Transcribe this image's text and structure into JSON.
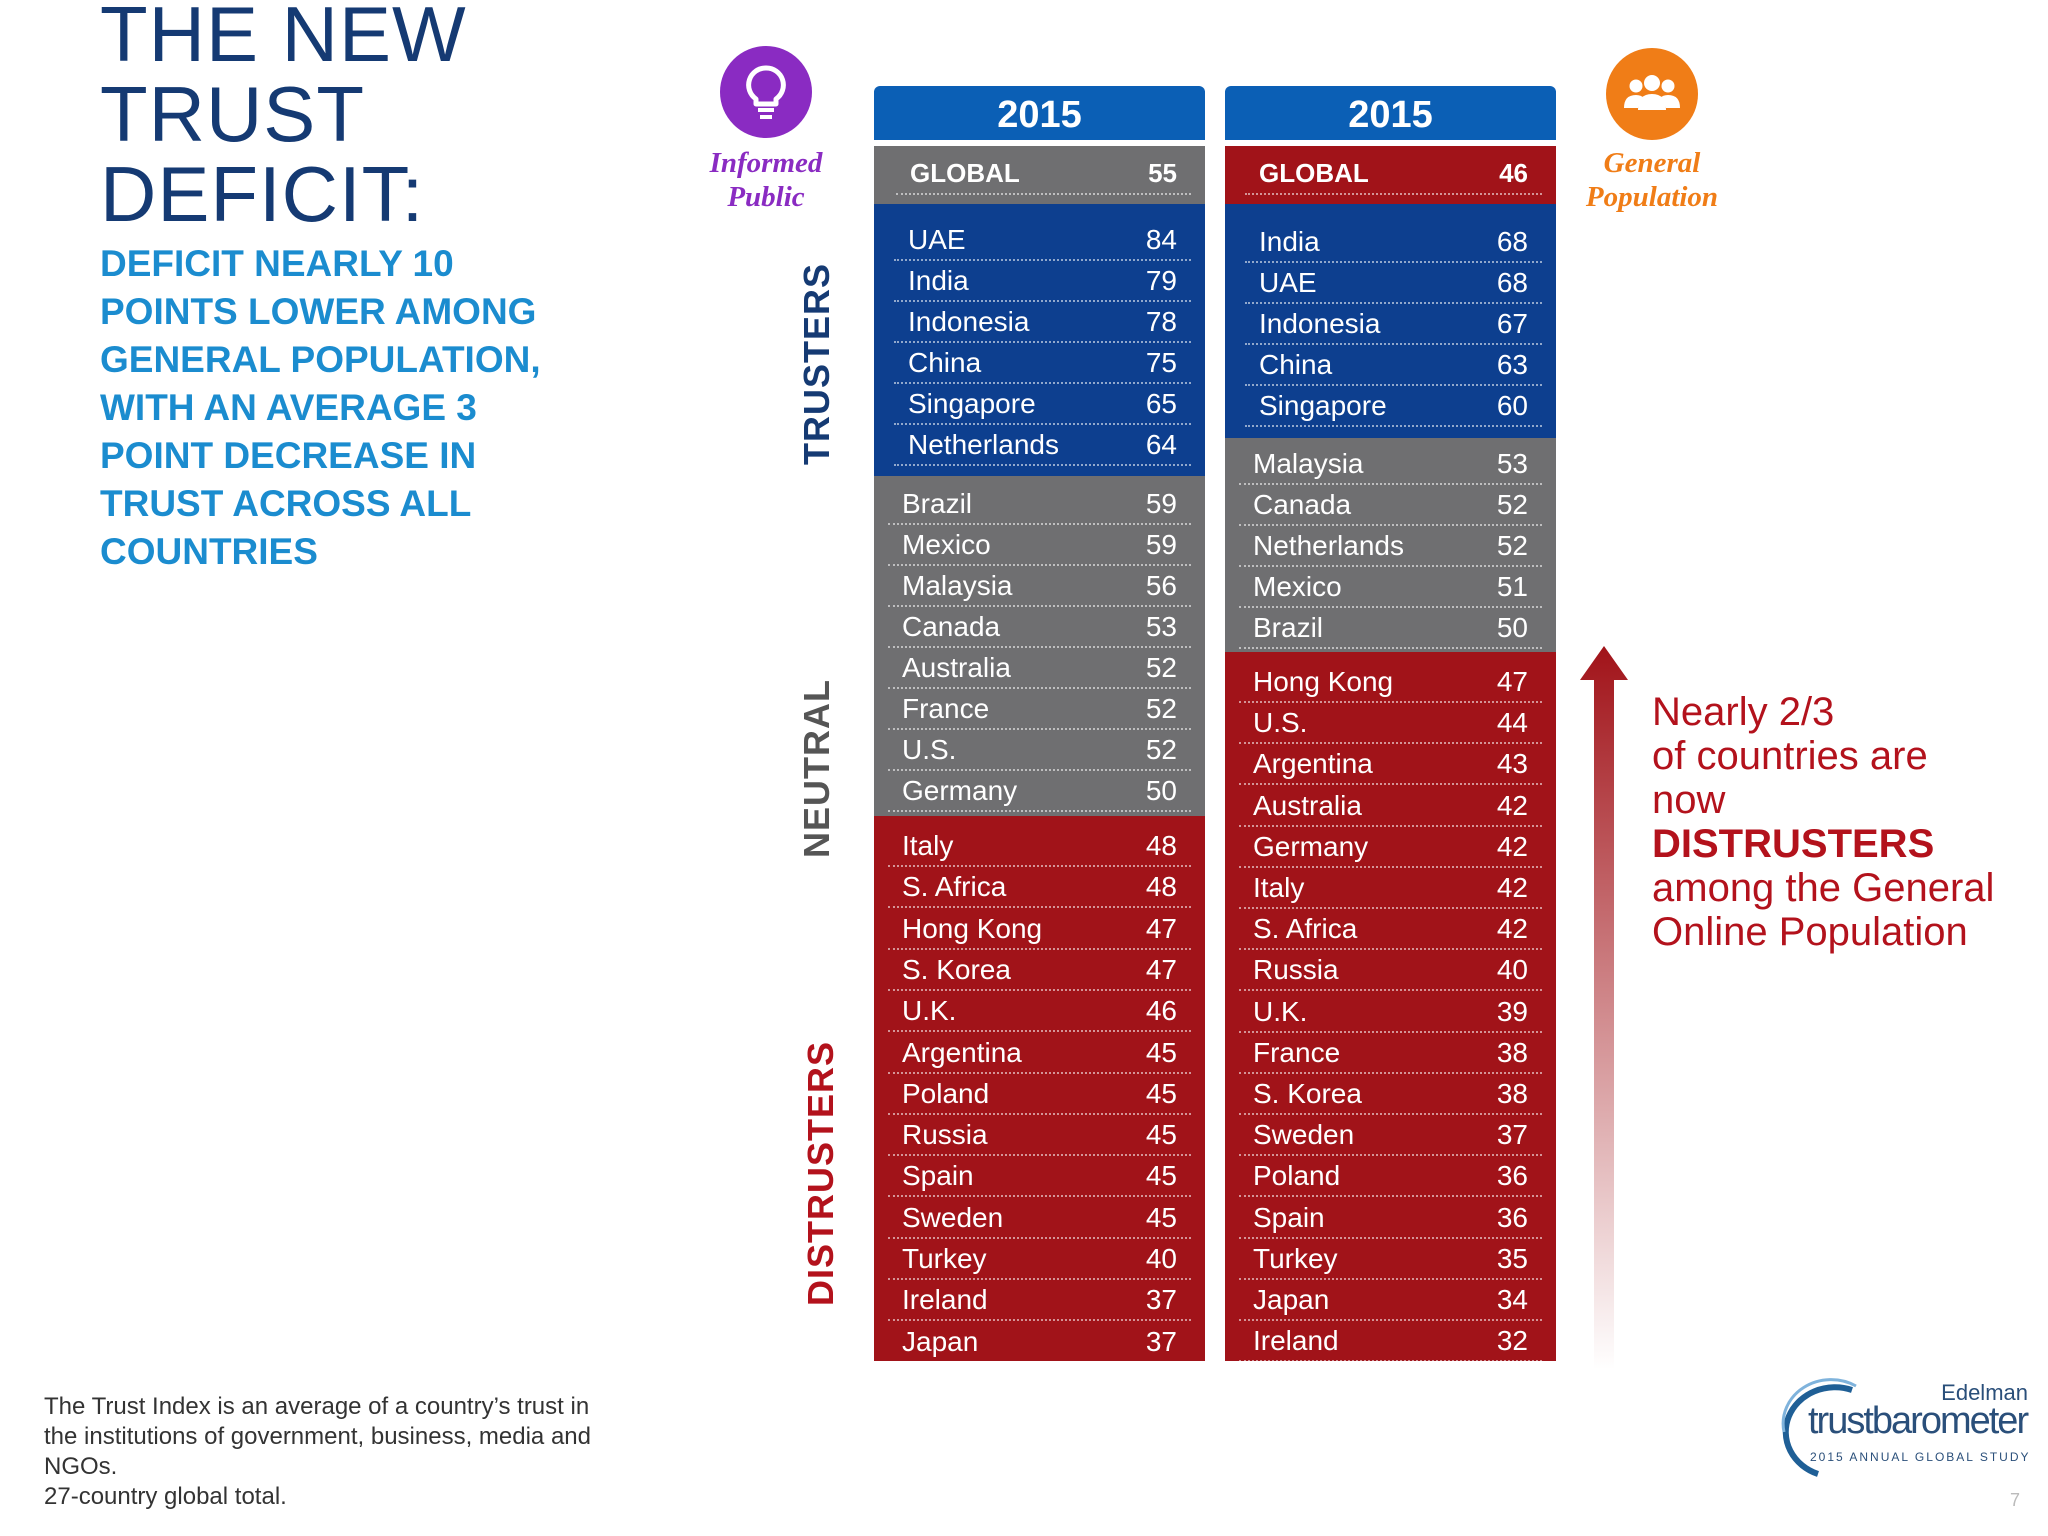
{
  "title": [
    "THE NEW",
    "TRUST",
    "DEFICIT:"
  ],
  "subtitle": [
    "DEFICIT NEARLY 10",
    "POINTS LOWER AMONG",
    "GENERAL POPULATION,",
    "WITH AN AVERAGE 3",
    "POINT DECREASE IN",
    "TRUST ACROSS ALL",
    "COUNTRIES"
  ],
  "side_labels": {
    "trusters": "TRUSTERS",
    "neutral": "NEUTRAL",
    "distrusters": "DISTRUSTERS"
  },
  "informed_public": {
    "label_line1": "Informed",
    "label_line2": "Public",
    "icon": "lightbulb-icon",
    "color": "#8a2bc2"
  },
  "general_population": {
    "label_line1": "General",
    "label_line2": "Population",
    "icon": "people-group-icon",
    "color": "#f07d17"
  },
  "colors": {
    "blue": "#0d3f8f",
    "gray": "#6f6f71",
    "red": "#a11319",
    "header_blue": "#0b5fb5"
  },
  "columns": [
    {
      "year": "2015",
      "global": {
        "name": "GLOBAL",
        "value": "55"
      },
      "trusters": [
        {
          "name": "UAE",
          "value": "84"
        },
        {
          "name": "India",
          "value": "79"
        },
        {
          "name": "Indonesia",
          "value": "78"
        },
        {
          "name": "China",
          "value": "75"
        },
        {
          "name": "Singapore",
          "value": "65"
        },
        {
          "name": "Netherlands",
          "value": "64"
        }
      ],
      "neutral": [
        {
          "name": "Brazil",
          "value": "59"
        },
        {
          "name": "Mexico",
          "value": "59"
        },
        {
          "name": "Malaysia",
          "value": "56"
        },
        {
          "name": "Canada",
          "value": "53"
        },
        {
          "name": "Australia",
          "value": "52"
        },
        {
          "name": "France",
          "value": "52"
        },
        {
          "name": "U.S.",
          "value": "52"
        },
        {
          "name": "Germany",
          "value": "50"
        }
      ],
      "distrusters": [
        {
          "name": "Italy",
          "value": "48"
        },
        {
          "name": "S. Africa",
          "value": "48"
        },
        {
          "name": "Hong Kong",
          "value": "47"
        },
        {
          "name": "S. Korea",
          "value": "47"
        },
        {
          "name": "U.K.",
          "value": "46"
        },
        {
          "name": "Argentina",
          "value": "45"
        },
        {
          "name": "Poland",
          "value": "45"
        },
        {
          "name": "Russia",
          "value": "45"
        },
        {
          "name": "Spain",
          "value": "45"
        },
        {
          "name": "Sweden",
          "value": "45"
        },
        {
          "name": "Turkey",
          "value": "40"
        },
        {
          "name": "Ireland",
          "value": "37"
        },
        {
          "name": "Japan",
          "value": "37"
        }
      ]
    },
    {
      "year": "2015",
      "global": {
        "name": "GLOBAL",
        "value": "46"
      },
      "trusters": [
        {
          "name": "India",
          "value": "68"
        },
        {
          "name": "UAE",
          "value": "68"
        },
        {
          "name": "Indonesia",
          "value": "67"
        },
        {
          "name": "China",
          "value": "63"
        },
        {
          "name": "Singapore",
          "value": "60"
        }
      ],
      "neutral": [
        {
          "name": "Malaysia",
          "value": "53"
        },
        {
          "name": "Canada",
          "value": "52"
        },
        {
          "name": "Netherlands",
          "value": "52"
        },
        {
          "name": "Mexico",
          "value": "51"
        },
        {
          "name": "Brazil",
          "value": "50"
        }
      ],
      "distrusters": [
        {
          "name": "Hong Kong",
          "value": "47"
        },
        {
          "name": "U.S.",
          "value": "44"
        },
        {
          "name": "Argentina",
          "value": "43"
        },
        {
          "name": "Australia",
          "value": "42"
        },
        {
          "name": "Germany",
          "value": "42"
        },
        {
          "name": "Italy",
          "value": "42"
        },
        {
          "name": "S. Africa",
          "value": "42"
        },
        {
          "name": "Russia",
          "value": "40"
        },
        {
          "name": "U.K.",
          "value": "39"
        },
        {
          "name": "France",
          "value": "38"
        },
        {
          "name": "S. Korea",
          "value": "38"
        },
        {
          "name": "Sweden",
          "value": "37"
        },
        {
          "name": "Poland",
          "value": "36"
        },
        {
          "name": "Spain",
          "value": "36"
        },
        {
          "name": "Turkey",
          "value": "35"
        },
        {
          "name": "Japan",
          "value": "34"
        },
        {
          "name": "Ireland",
          "value": "32"
        }
      ]
    }
  ],
  "note": {
    "line1": "Nearly 2/3",
    "line2": "of countries are",
    "line3": "now",
    "line4_bold": "DISTRUSTERS",
    "line5": "among the General",
    "line6": "Online Population"
  },
  "footer": {
    "line1": "The Trust Index is an average of a country’s trust in",
    "line2": "the institutions of government, business, media and",
    "line3": "NGOs.",
    "line4": "27-country global total."
  },
  "logo": {
    "brand": "Edelman",
    "product": "trustbarometer",
    "tagline": "2015 ANNUAL GLOBAL STUDY"
  },
  "page_number": "7"
}
